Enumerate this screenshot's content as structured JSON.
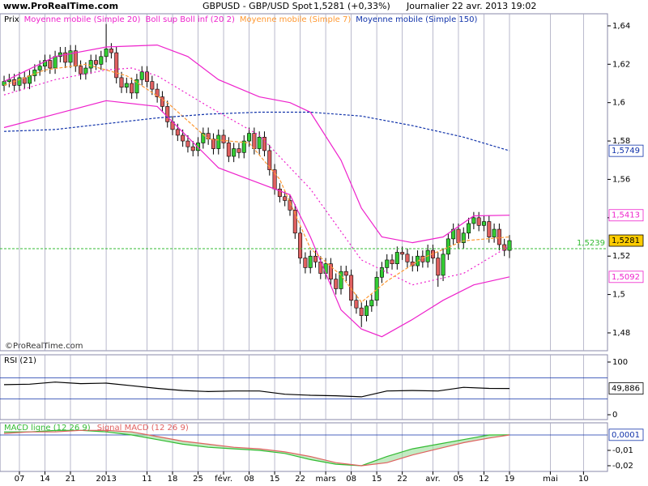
{
  "header": {
    "site": "www.ProRealTime.com",
    "instrument": "GBPUSD - GBP/USD Spot",
    "quote": "1,5281 (+0,33%)",
    "period": "Journalier  22 avr. 2013 19:02",
    "watermark": "©ProRealTime.com"
  },
  "chart_data": [
    {
      "type": "candlestick",
      "xlim": [
        -0.8,
        118.2
      ],
      "xticks": [
        {
          "value": 3,
          "label": "07"
        },
        {
          "value": 8,
          "label": "14"
        },
        {
          "value": 13,
          "label": "21"
        },
        {
          "value": 20,
          "label": "2013"
        },
        {
          "value": 28,
          "label": "11"
        },
        {
          "value": 33,
          "label": "18"
        },
        {
          "value": 38,
          "label": "25"
        },
        {
          "value": 43,
          "label": "févr."
        },
        {
          "value": 48,
          "label": "08"
        },
        {
          "value": 53,
          "label": "15"
        },
        {
          "value": 58,
          "label": "22"
        },
        {
          "value": 63,
          "label": "mars"
        },
        {
          "value": 68,
          "label": "08"
        },
        {
          "value": 73,
          "label": "15"
        },
        {
          "value": 78,
          "label": "22"
        },
        {
          "value": 84,
          "label": "avr."
        },
        {
          "value": 89,
          "label": "05"
        },
        {
          "value": 94,
          "label": "12"
        },
        {
          "value": 99,
          "label": "19"
        },
        {
          "value": 107,
          "label": "mai"
        },
        {
          "value": 113.5,
          "label": "10"
        }
      ],
      "ylim": [
        1.4707,
        1.6463
      ],
      "yticks": [
        {
          "value": 1.48,
          "label": "1,48"
        },
        {
          "value": 1.5,
          "label": "1,5"
        },
        {
          "value": 1.52,
          "label": "1,52"
        },
        {
          "value": 1.54,
          "label": "1,54"
        },
        {
          "value": 1.56,
          "label": "1,56"
        },
        {
          "value": 1.58,
          "label": "1,58"
        },
        {
          "value": 1.6,
          "label": "1,6"
        },
        {
          "value": 1.62,
          "label": "1,62"
        },
        {
          "value": 1.64,
          "label": "1,64"
        }
      ],
      "candles": {
        "name": "Prix",
        "up_color": "#33cc33",
        "down_color": "#e06060",
        "open": [
          1.609,
          1.611,
          1.612,
          1.609,
          1.613,
          1.61,
          1.614,
          1.617,
          1.619,
          1.622,
          1.618,
          1.624,
          1.626,
          1.621,
          1.627,
          1.619,
          1.615,
          1.618,
          1.622,
          1.62,
          1.624,
          1.628,
          1.626,
          1.613,
          1.608,
          1.61,
          1.605,
          1.612,
          1.616,
          1.611,
          1.607,
          1.603,
          1.598,
          1.59,
          1.586,
          1.583,
          1.58,
          1.577,
          1.575,
          1.579,
          1.584,
          1.581,
          1.576,
          1.583,
          1.579,
          1.572,
          1.576,
          1.574,
          1.58,
          1.584,
          1.576,
          1.582,
          1.575,
          1.565,
          1.555,
          1.551,
          1.549,
          1.544,
          1.532,
          1.519,
          1.514,
          1.52,
          1.517,
          1.511,
          1.516,
          1.508,
          1.503,
          1.512,
          1.51,
          1.497,
          1.493,
          1.489,
          1.494,
          1.497,
          1.509,
          1.514,
          1.518,
          1.516,
          1.522,
          1.521,
          1.517,
          1.515,
          1.52,
          1.517,
          1.523,
          1.519,
          1.51,
          1.521,
          1.529,
          1.534,
          1.527,
          1.532,
          1.537,
          1.54,
          1.536,
          1.538,
          1.53,
          1.534,
          1.526,
          1.523
        ],
        "high": [
          1.614,
          1.615,
          1.615,
          1.616,
          1.616,
          1.617,
          1.62,
          1.622,
          1.625,
          1.625,
          1.627,
          1.629,
          1.629,
          1.63,
          1.63,
          1.622,
          1.621,
          1.625,
          1.625,
          1.627,
          1.641,
          1.631,
          1.629,
          1.616,
          1.613,
          1.613,
          1.615,
          1.619,
          1.619,
          1.614,
          1.61,
          1.606,
          1.601,
          1.593,
          1.589,
          1.586,
          1.583,
          1.58,
          1.582,
          1.587,
          1.587,
          1.584,
          1.586,
          1.586,
          1.582,
          1.579,
          1.579,
          1.583,
          1.587,
          1.587,
          1.585,
          1.585,
          1.578,
          1.568,
          1.558,
          1.554,
          1.552,
          1.547,
          1.535,
          1.522,
          1.523,
          1.523,
          1.52,
          1.519,
          1.519,
          1.511,
          1.515,
          1.515,
          1.513,
          1.5,
          1.496,
          1.497,
          1.5,
          1.512,
          1.517,
          1.521,
          1.521,
          1.525,
          1.525,
          1.524,
          1.52,
          1.523,
          1.523,
          1.526,
          1.526,
          1.522,
          1.524,
          1.532,
          1.537,
          1.537,
          1.535,
          1.54,
          1.543,
          1.543,
          1.541,
          1.541,
          1.537,
          1.537,
          1.529,
          1.531
        ],
        "low": [
          1.606,
          1.608,
          1.606,
          1.606,
          1.607,
          1.607,
          1.611,
          1.614,
          1.616,
          1.615,
          1.615,
          1.621,
          1.618,
          1.618,
          1.616,
          1.612,
          1.612,
          1.615,
          1.617,
          1.617,
          1.621,
          1.623,
          1.61,
          1.605,
          1.605,
          1.602,
          1.602,
          1.609,
          1.608,
          1.604,
          1.6,
          1.595,
          1.587,
          1.583,
          1.58,
          1.577,
          1.574,
          1.572,
          1.572,
          1.576,
          1.578,
          1.573,
          1.573,
          1.576,
          1.569,
          1.569,
          1.571,
          1.571,
          1.577,
          1.573,
          1.573,
          1.572,
          1.562,
          1.552,
          1.548,
          1.546,
          1.541,
          1.529,
          1.516,
          1.511,
          1.511,
          1.514,
          1.508,
          1.508,
          1.505,
          1.5,
          1.5,
          1.507,
          1.494,
          1.49,
          1.483,
          1.486,
          1.491,
          1.494,
          1.506,
          1.511,
          1.513,
          1.513,
          1.518,
          1.514,
          1.512,
          1.512,
          1.514,
          1.514,
          1.516,
          1.504,
          1.507,
          1.518,
          1.526,
          1.524,
          1.524,
          1.529,
          1.534,
          1.533,
          1.533,
          1.527,
          1.527,
          1.523,
          1.52,
          1.519
        ],
        "close": [
          1.611,
          1.612,
          1.609,
          1.613,
          1.61,
          1.614,
          1.617,
          1.619,
          1.622,
          1.618,
          1.624,
          1.626,
          1.621,
          1.627,
          1.619,
          1.615,
          1.618,
          1.622,
          1.62,
          1.624,
          1.628,
          1.626,
          1.613,
          1.608,
          1.61,
          1.605,
          1.612,
          1.616,
          1.611,
          1.607,
          1.603,
          1.598,
          1.59,
          1.586,
          1.583,
          1.58,
          1.577,
          1.575,
          1.579,
          1.584,
          1.581,
          1.576,
          1.583,
          1.579,
          1.572,
          1.576,
          1.574,
          1.58,
          1.584,
          1.576,
          1.582,
          1.575,
          1.565,
          1.555,
          1.551,
          1.549,
          1.544,
          1.532,
          1.519,
          1.514,
          1.52,
          1.517,
          1.511,
          1.516,
          1.508,
          1.503,
          1.512,
          1.51,
          1.497,
          1.493,
          1.489,
          1.494,
          1.497,
          1.509,
          1.514,
          1.518,
          1.516,
          1.522,
          1.521,
          1.517,
          1.515,
          1.52,
          1.517,
          1.523,
          1.519,
          1.51,
          1.521,
          1.529,
          1.534,
          1.527,
          1.532,
          1.537,
          1.54,
          1.536,
          1.538,
          1.53,
          1.534,
          1.526,
          1.523,
          1.5281
        ]
      },
      "series": [
        {
          "name": "Moyenne mobile (Simple 20)",
          "color": "#ee22cc",
          "dash": "2,3",
          "x": [
            0,
            10,
            20,
            25,
            30,
            40,
            50,
            60,
            70,
            80,
            90,
            99
          ],
          "values": [
            1.604,
            1.612,
            1.617,
            1.618,
            1.614,
            1.598,
            1.583,
            1.555,
            1.518,
            1.505,
            1.511,
            1.5253
          ]
        },
        {
          "name": "Boll sup Boll inf (20 2)",
          "color": "#ee22cc",
          "x": [
            0,
            10,
            20,
            30,
            36,
            42,
            50,
            56,
            60,
            66,
            70,
            74,
            80,
            86,
            92,
            99
          ],
          "upper": [
            1.611,
            1.624,
            1.629,
            1.63,
            1.624,
            1.612,
            1.603,
            1.6,
            1.595,
            1.57,
            1.545,
            1.53,
            1.527,
            1.53,
            1.541,
            1.5413
          ],
          "lower": [
            1.587,
            1.594,
            1.601,
            1.598,
            1.582,
            1.566,
            1.558,
            1.552,
            1.53,
            1.492,
            1.482,
            1.478,
            1.487,
            1.497,
            1.505,
            1.5092
          ]
        },
        {
          "name": "Moyenne mobile (Simple 7)",
          "color": "#ff9933",
          "dash": "4,2",
          "x": [
            0,
            8,
            16,
            24,
            32,
            40,
            48,
            54,
            60,
            66,
            70,
            75,
            82,
            90,
            99
          ],
          "values": [
            1.609,
            1.617,
            1.62,
            1.614,
            1.6,
            1.581,
            1.579,
            1.56,
            1.524,
            1.51,
            1.496,
            1.507,
            1.519,
            1.528,
            1.53
          ]
        },
        {
          "name": "Moyenne mobile (Simple 150)",
          "color": "#1133aa",
          "dash": "3,2",
          "x": [
            0,
            10,
            20,
            30,
            40,
            50,
            60,
            70,
            80,
            90,
            99
          ],
          "values": [
            1.585,
            1.586,
            1.589,
            1.592,
            1.594,
            1.595,
            1.595,
            1.593,
            1.588,
            1.582,
            1.5749
          ]
        }
      ],
      "price_line": {
        "value": 1.5239,
        "label": "1,5239",
        "color": "#33bb33"
      },
      "last_labels": [
        {
          "value": 1.5749,
          "label": "1,5749",
          "color": "#1133aa"
        },
        {
          "value": 1.5413,
          "label": "1,5413",
          "color": "#ee22cc"
        },
        {
          "value": 1.5281,
          "label": "1,5281",
          "color": "#ffcc00"
        },
        {
          "value": 1.5092,
          "label": "1,5092",
          "color": "#ee22cc"
        }
      ]
    },
    {
      "type": "line",
      "title": "RSI (21)",
      "ylim": [
        -9.2,
        113.8
      ],
      "yticks": [
        0,
        100
      ],
      "levels": [
        30,
        70
      ],
      "series": [
        {
          "name": "RSI (21)",
          "color": "#000000",
          "x": [
            0,
            5,
            10,
            15,
            20,
            25,
            30,
            35,
            40,
            45,
            50,
            55,
            60,
            65,
            70,
            75,
            80,
            85,
            90,
            95,
            99
          ],
          "values": [
            57,
            58,
            62,
            59,
            60,
            55,
            50,
            46,
            44,
            45,
            45,
            39,
            37,
            36,
            34,
            45,
            46,
            45,
            52,
            50,
            49.886
          ]
        }
      ],
      "last_labels": [
        {
          "value": 49.886,
          "label": "49,886",
          "color": "#000000"
        }
      ]
    },
    {
      "type": "line",
      "ylim": [
        -0.0237,
        0.0079
      ],
      "yticks": [
        {
          "value": -0.01,
          "label": "-0,01"
        },
        {
          "value": -0.02,
          "label": "-0,02"
        }
      ],
      "levels": [
        0
      ],
      "series": [
        {
          "name": "MACD ligne (12 26 9)",
          "color": "#33bb33",
          "x": [
            0,
            5,
            10,
            15,
            20,
            25,
            30,
            35,
            40,
            45,
            50,
            55,
            60,
            65,
            70,
            75,
            80,
            85,
            90,
            95,
            99
          ],
          "values": [
            0.002,
            0.002,
            0.003,
            0.003,
            0.002,
            0,
            -0.003,
            -0.006,
            -0.008,
            -0.009,
            -0.01,
            -0.012,
            -0.016,
            -0.019,
            -0.02,
            -0.014,
            -0.009,
            -0.006,
            -0.003,
            0,
            0.0001
          ]
        },
        {
          "name": "Signal MACD (12 26 9)",
          "color": "#e06060",
          "x": [
            0,
            5,
            10,
            15,
            20,
            25,
            30,
            35,
            40,
            45,
            50,
            55,
            60,
            65,
            70,
            75,
            80,
            85,
            90,
            95,
            99
          ],
          "values": [
            0.001,
            0.002,
            0.002,
            0.003,
            0.003,
            0.002,
            -0.001,
            -0.004,
            -0.006,
            -0.008,
            -0.009,
            -0.011,
            -0.014,
            -0.018,
            -0.02,
            -0.018,
            -0.013,
            -0.009,
            -0.005,
            -0.002,
            0
          ]
        }
      ],
      "last_labels": [
        {
          "value": 0.0001,
          "label": "0,0001",
          "color": "#1133aa"
        }
      ]
    }
  ]
}
